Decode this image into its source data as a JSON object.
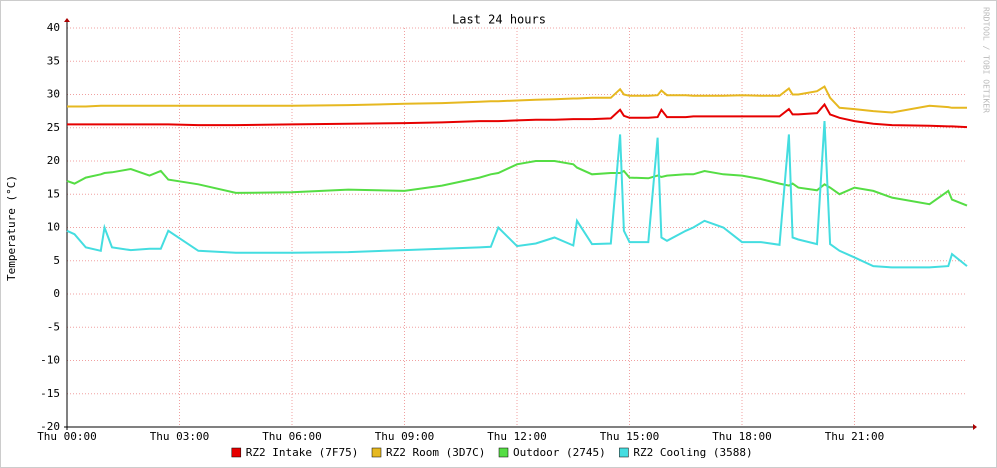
{
  "chart_data": {
    "type": "line",
    "title": "Last 24 hours",
    "y_label": "Temperature (°C)",
    "watermark": "RRDTOOL / TOBI OETIKER",
    "x": [
      0,
      0.2,
      0.5,
      0.9,
      1.0,
      1.2,
      1.7,
      2.2,
      2.5,
      2.7,
      3.5,
      4.5,
      6,
      7.5,
      9,
      10,
      11,
      11.3,
      11.5,
      12,
      12.5,
      13,
      13.5,
      13.6,
      14,
      14.5,
      14.75,
      14.85,
      15,
      15.5,
      15.75,
      15.85,
      16,
      16.5,
      16.7,
      17,
      17.5,
      18,
      18.5,
      19,
      19.25,
      19.35,
      19.5,
      20,
      20.2,
      20.35,
      20.6,
      21,
      21.5,
      22,
      23,
      23.5,
      23.6,
      24
    ],
    "series": [
      {
        "name": "RZ2 Intake (7F75)",
        "color": "#e60000",
        "values": [
          25.5,
          25.5,
          25.5,
          25.5,
          25.5,
          25.5,
          25.5,
          25.5,
          25.5,
          25.5,
          25.4,
          25.4,
          25.5,
          25.6,
          25.7,
          25.8,
          26,
          26,
          26,
          26.1,
          26.2,
          26.2,
          26.3,
          26.3,
          26.3,
          26.4,
          27.7,
          26.8,
          26.5,
          26.5,
          26.6,
          27.7,
          26.6,
          26.6,
          26.7,
          26.7,
          26.7,
          26.7,
          26.7,
          26.7,
          27.8,
          27,
          27,
          27.2,
          28.5,
          27,
          26.5,
          26,
          25.6,
          25.4,
          25.3,
          25.2,
          25.2,
          25.1
        ]
      },
      {
        "name": "RZ2 Room (3D7C)",
        "color": "#e6b820",
        "values": [
          28.2,
          28.2,
          28.2,
          28.3,
          28.3,
          28.3,
          28.3,
          28.3,
          28.3,
          28.3,
          28.3,
          28.3,
          28.3,
          28.4,
          28.6,
          28.7,
          28.9,
          29,
          29,
          29.1,
          29.2,
          29.3,
          29.4,
          29.4,
          29.5,
          29.5,
          30.8,
          30,
          29.8,
          29.8,
          29.9,
          30.6,
          29.9,
          29.9,
          29.8,
          29.8,
          29.8,
          29.9,
          29.8,
          29.8,
          30.9,
          30,
          30,
          30.5,
          31.2,
          29.5,
          28,
          27.8,
          27.5,
          27.3,
          28.3,
          28.1,
          28,
          28
        ]
      },
      {
        "name": "Outdoor (2745)",
        "color": "#55dd44",
        "values": [
          17,
          16.6,
          17.5,
          18,
          18.2,
          18.3,
          18.8,
          17.8,
          18.5,
          17.2,
          16.5,
          15.2,
          15.3,
          15.7,
          15.5,
          16.3,
          17.5,
          18,
          18.2,
          19.5,
          20,
          20,
          19.5,
          19,
          18,
          18.2,
          18.2,
          18.5,
          17.5,
          17.4,
          17.8,
          17.6,
          17.8,
          18,
          18,
          18.5,
          18,
          17.8,
          17.3,
          16.6,
          16.3,
          16.6,
          16,
          15.6,
          16.5,
          16,
          15,
          16,
          15.5,
          14.5,
          13.5,
          15.5,
          14.2,
          13.3
        ]
      },
      {
        "name": "RZ2 Cooling (3588)",
        "color": "#44dde0",
        "values": [
          9.5,
          9,
          7,
          6.5,
          10,
          7,
          6.6,
          6.8,
          6.8,
          9.5,
          6.5,
          6.2,
          6.2,
          6.3,
          6.6,
          6.8,
          7,
          7.1,
          10,
          7.2,
          7.6,
          8.5,
          7.3,
          11,
          7.5,
          7.6,
          24,
          9.5,
          7.8,
          7.8,
          23.5,
          8.5,
          8,
          9.5,
          10,
          11,
          10,
          7.8,
          7.8,
          7.4,
          24,
          8.5,
          8.2,
          7.5,
          26,
          7.5,
          6.5,
          5.5,
          4.2,
          4,
          4,
          4.2,
          6,
          4.2
        ]
      }
    ],
    "xlim": [
      0,
      24
    ],
    "xticks": [
      {
        "value": 0,
        "label": "Thu 00:00"
      },
      {
        "value": 3,
        "label": "Thu 03:00"
      },
      {
        "value": 6,
        "label": "Thu 06:00"
      },
      {
        "value": 9,
        "label": "Thu 09:00"
      },
      {
        "value": 12,
        "label": "Thu 12:00"
      },
      {
        "value": 15,
        "label": "Thu 15:00"
      },
      {
        "value": 18,
        "label": "Thu 18:00"
      },
      {
        "value": 21,
        "label": "Thu 21:00"
      }
    ],
    "ylim": [
      -20,
      40
    ],
    "yticks": [
      40,
      35,
      30,
      25,
      20,
      15,
      10,
      5,
      0,
      -5,
      -10,
      -15,
      -20
    ],
    "grid": true
  }
}
